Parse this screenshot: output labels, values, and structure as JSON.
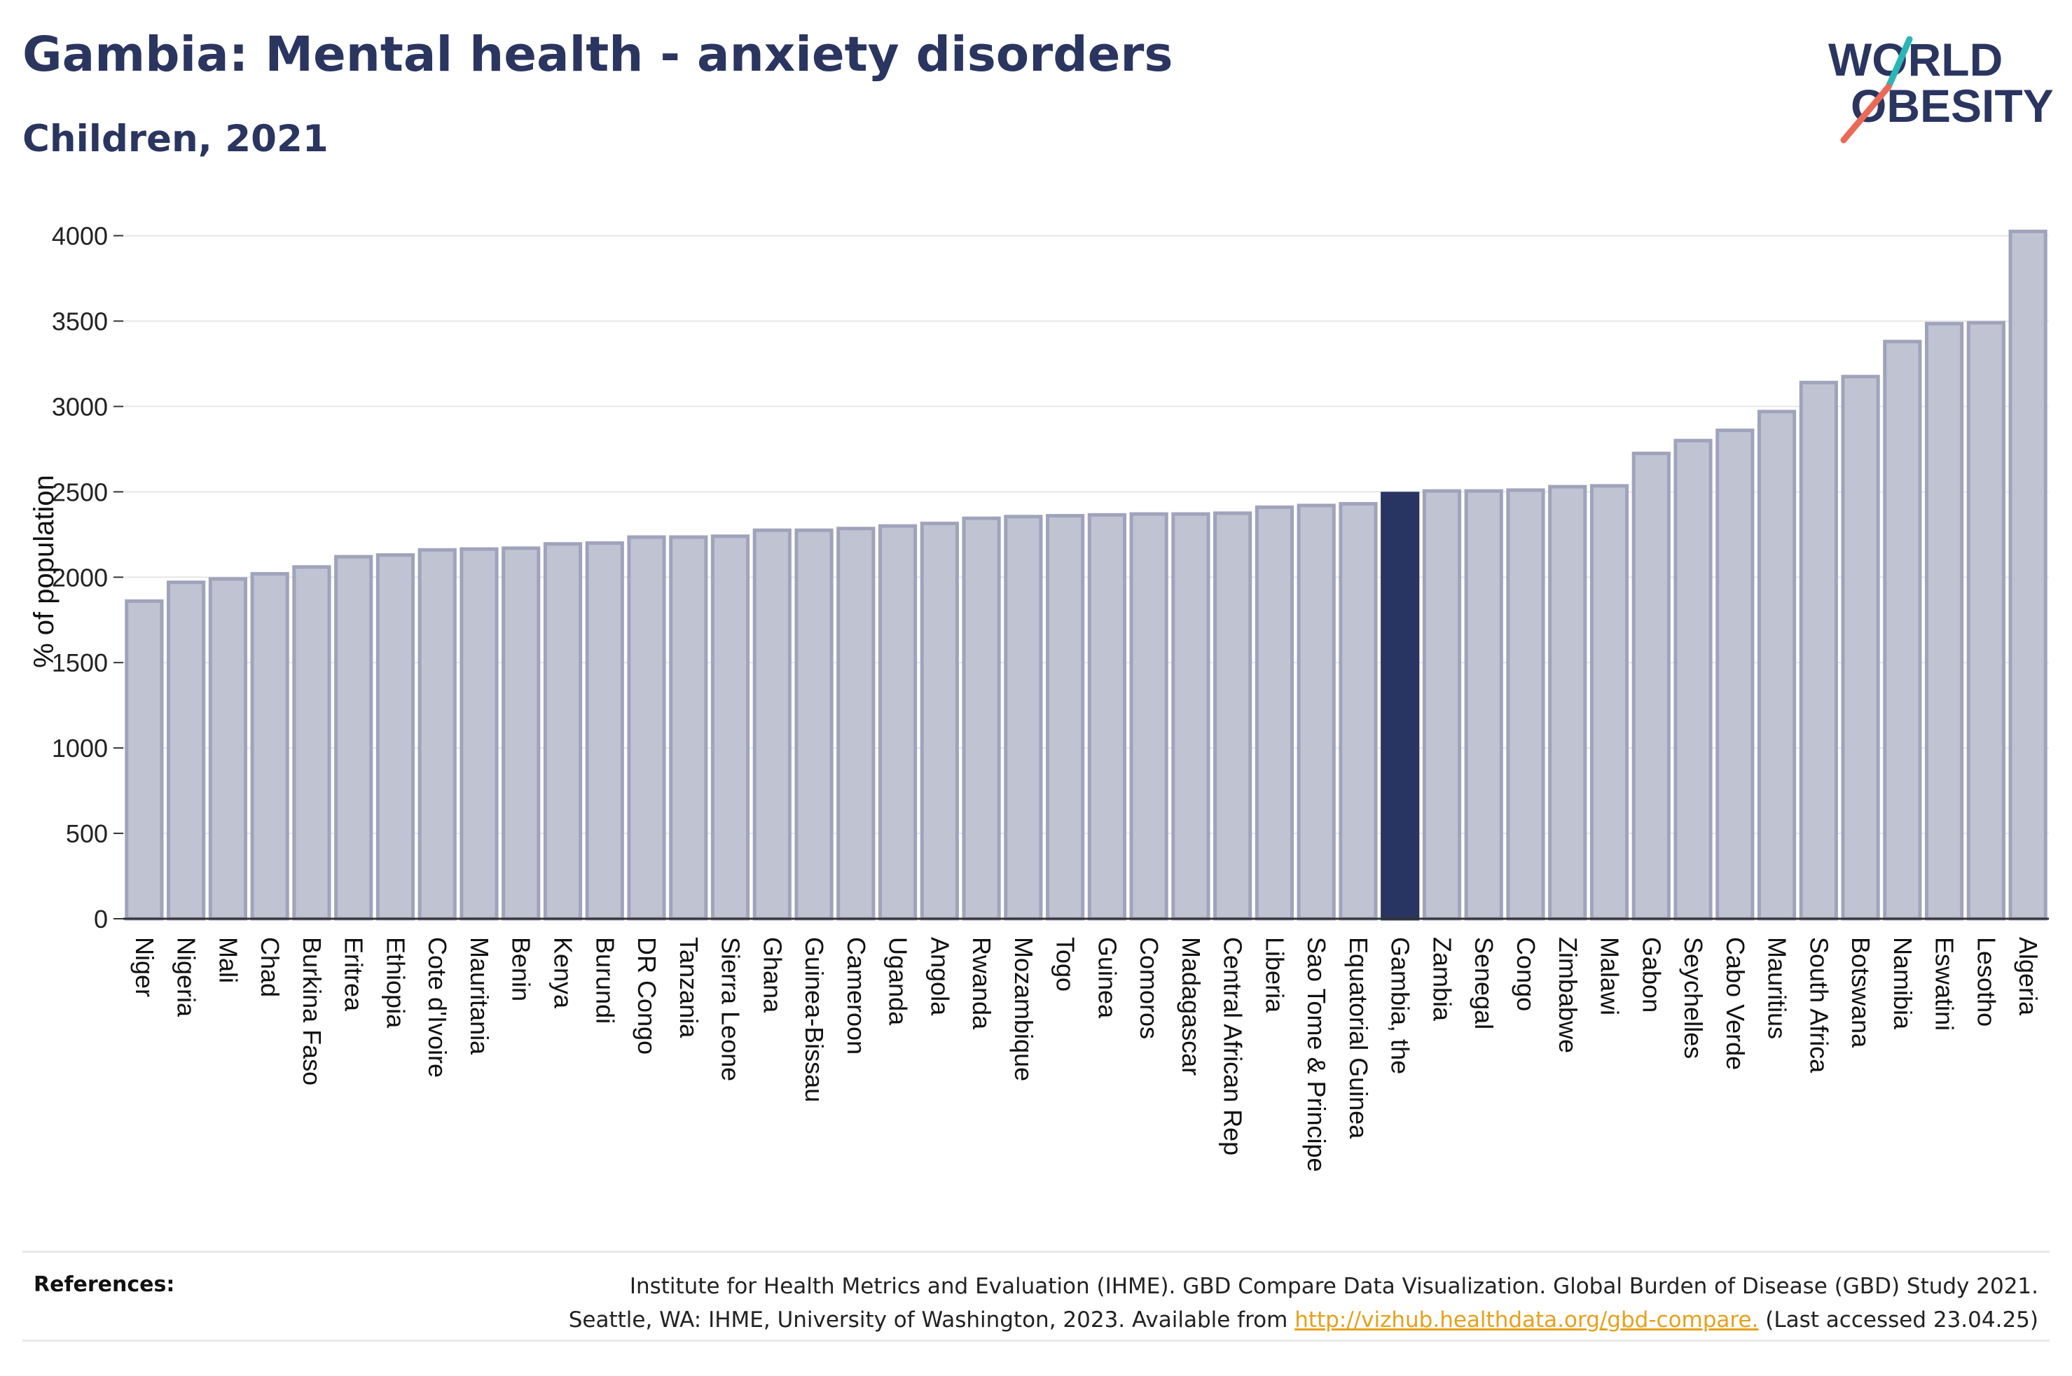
{
  "header": {
    "title": "Gambia: Mental health - anxiety disorders",
    "subtitle": "Children, 2021"
  },
  "logo": {
    "line1": "WORLD",
    "line2": "OBESITY",
    "accent_colors": [
      "#2bb6b5",
      "#e96a57"
    ],
    "text_color": "#2a3560"
  },
  "colors": {
    "bar": "#c0c3d2",
    "bar_stroke": "#9fa3bb",
    "highlight": "#283462",
    "grid": "#e6e6e6",
    "axis": "#333333"
  },
  "chart_data": {
    "type": "bar",
    "title": "Gambia: Mental health - anxiety disorders",
    "subtitle": "Children, 2021",
    "xlabel": "",
    "ylabel": "% of population",
    "ylim": [
      0,
      4150
    ],
    "yticks": [
      0,
      500,
      1000,
      1500,
      2000,
      2500,
      3000,
      3500,
      4000
    ],
    "grid": true,
    "highlight": "Gambia, the",
    "categories": [
      "Niger",
      "Nigeria",
      "Mali",
      "Chad",
      "Burkina Faso",
      "Eritrea",
      "Ethiopia",
      "Cote d'Ivoire",
      "Mauritania",
      "Benin",
      "Kenya",
      "Burundi",
      "DR Congo",
      "Tanzania",
      "Sierra Leone",
      "Ghana",
      "Guinea-Bissau",
      "Cameroon",
      "Uganda",
      "Angola",
      "Rwanda",
      "Mozambique",
      "Togo",
      "Guinea",
      "Comoros",
      "Madagascar",
      "Central African Rep",
      "Liberia",
      "Sao Tome & Principe",
      "Equatorial Guinea",
      "Gambia, the",
      "Zambia",
      "Senegal",
      "Congo",
      "Zimbabwe",
      "Malawi",
      "Gabon",
      "Seychelles",
      "Cabo Verde",
      "Mauritius",
      "South Africa",
      "Botswana",
      "Namibia",
      "Eswatini",
      "Lesotho",
      "Algeria"
    ],
    "values": [
      1860,
      1970,
      1990,
      2020,
      2060,
      2120,
      2130,
      2160,
      2165,
      2170,
      2195,
      2200,
      2235,
      2235,
      2240,
      2275,
      2275,
      2285,
      2300,
      2315,
      2345,
      2355,
      2360,
      2365,
      2370,
      2370,
      2375,
      2410,
      2420,
      2430,
      2490,
      2505,
      2505,
      2510,
      2530,
      2535,
      2725,
      2800,
      2860,
      2970,
      3140,
      3175,
      3380,
      3485,
      3490,
      4025
    ]
  },
  "references": {
    "label": "References:",
    "line1": "Institute for Health Metrics and Evaluation (IHME). GBD Compare Data Visualization. Global Burden of Disease (GBD) Study 2021.",
    "line2_prefix": "Seattle, WA: IHME, University of Washington, 2023. Available from",
    "link": "http://vizhub.healthdata.org/gbd-compare.",
    "line2_suffix": "(Last accessed 23.04.25)"
  }
}
